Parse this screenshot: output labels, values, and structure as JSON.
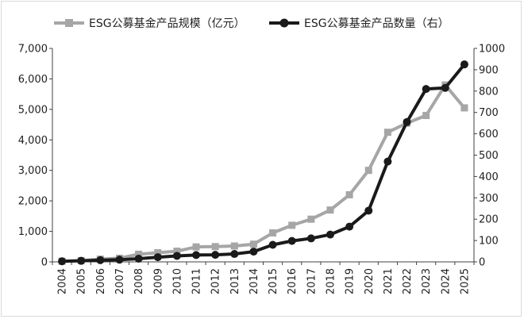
{
  "chart_data": {
    "type": "line",
    "categories": [
      "2004",
      "2005",
      "2006",
      "2007",
      "2008",
      "2009",
      "2010",
      "2011",
      "2012",
      "2013",
      "2014",
      "2015",
      "2016",
      "2017",
      "2018",
      "2019",
      "2020",
      "2021",
      "2022",
      "2023",
      "2024",
      "2025"
    ],
    "y_left": {
      "ylim": [
        0,
        7000
      ],
      "ticks": [
        0,
        1000,
        2000,
        3000,
        4000,
        5000,
        6000,
        7000
      ],
      "tick_labels": [
        "0",
        "1,000",
        "2,000",
        "3,000",
        "4,000",
        "5,000",
        "6,000",
        "7,000"
      ]
    },
    "y_right": {
      "ylim": [
        0,
        1000
      ],
      "ticks": [
        0,
        100,
        200,
        300,
        400,
        500,
        600,
        700,
        800,
        900,
        1000
      ],
      "tick_labels": [
        "0",
        "100",
        "200",
        "300",
        "400",
        "500",
        "600",
        "700",
        "800",
        "900",
        "1000"
      ]
    },
    "grid": false,
    "legend": "top",
    "series": [
      {
        "name": "ESG公募基金产品规模（亿元）",
        "axis": "left",
        "color": "#a6a6a6",
        "marker": "square",
        "values": [
          20,
          40,
          90,
          120,
          250,
          300,
          350,
          490,
          500,
          520,
          580,
          950,
          1200,
          1400,
          1700,
          2200,
          3000,
          4250,
          4550,
          4800,
          5800,
          5050
        ]
      },
      {
        "name": "ESG公募基金产品数量（右）",
        "axis": "right",
        "color": "#1a1a1a",
        "marker": "circle",
        "values": [
          3,
          5,
          8,
          10,
          15,
          22,
          28,
          32,
          33,
          37,
          48,
          80,
          98,
          110,
          128,
          165,
          240,
          470,
          655,
          810,
          815,
          925
        ]
      }
    ]
  }
}
